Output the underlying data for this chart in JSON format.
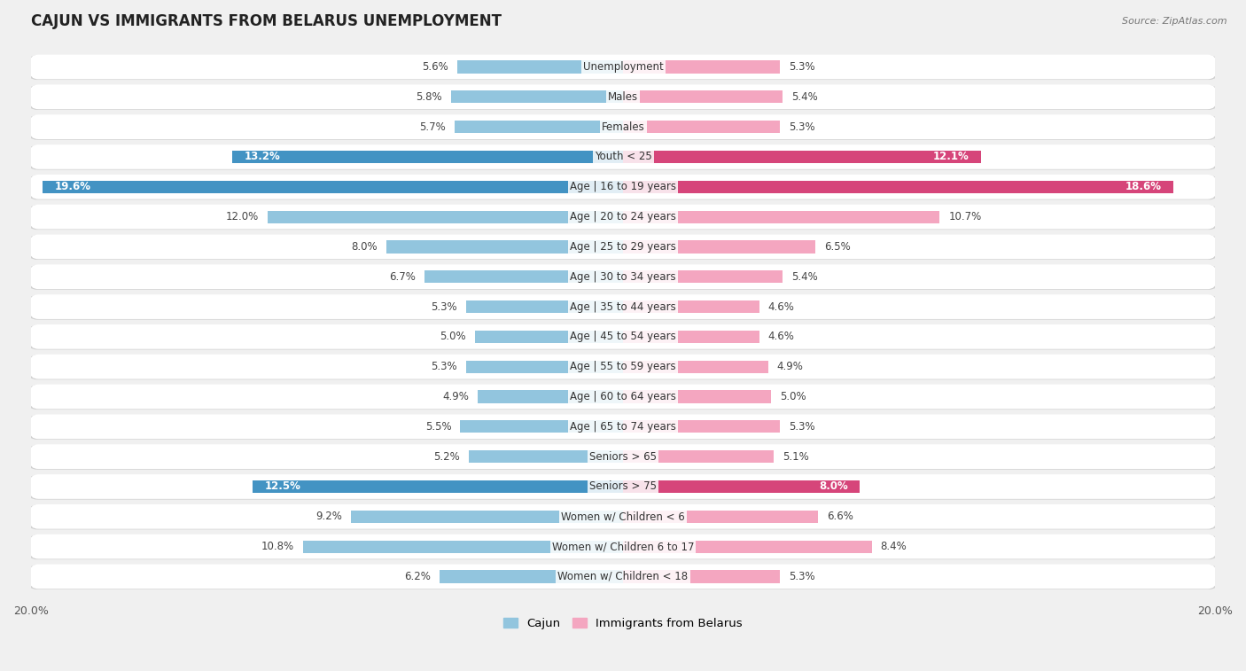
{
  "title": "CAJUN VS IMMIGRANTS FROM BELARUS UNEMPLOYMENT",
  "source": "Source: ZipAtlas.com",
  "categories": [
    "Unemployment",
    "Males",
    "Females",
    "Youth < 25",
    "Age | 16 to 19 years",
    "Age | 20 to 24 years",
    "Age | 25 to 29 years",
    "Age | 30 to 34 years",
    "Age | 35 to 44 years",
    "Age | 45 to 54 years",
    "Age | 55 to 59 years",
    "Age | 60 to 64 years",
    "Age | 65 to 74 years",
    "Seniors > 65",
    "Seniors > 75",
    "Women w/ Children < 6",
    "Women w/ Children 6 to 17",
    "Women w/ Children < 18"
  ],
  "cajun": [
    5.6,
    5.8,
    5.7,
    13.2,
    19.6,
    12.0,
    8.0,
    6.7,
    5.3,
    5.0,
    5.3,
    4.9,
    5.5,
    5.2,
    12.5,
    9.2,
    10.8,
    6.2
  ],
  "belarus": [
    5.3,
    5.4,
    5.3,
    12.1,
    18.6,
    10.7,
    6.5,
    5.4,
    4.6,
    4.6,
    4.9,
    5.0,
    5.3,
    5.1,
    8.0,
    6.6,
    8.4,
    5.3
  ],
  "cajun_color_light": "#92c5de",
  "cajun_color_dark": "#4393c3",
  "belarus_color_light": "#f4a6c0",
  "belarus_color_dark": "#d6457a",
  "highlight_rows": [
    3,
    4,
    14
  ],
  "background_color": "#f0f0f0",
  "row_bg_color": "#ffffff",
  "row_border_color": "#d0d0d0",
  "axis_limit": 20.0,
  "legend_label_cajun": "Cajun",
  "legend_label_belarus": "Immigrants from Belarus"
}
